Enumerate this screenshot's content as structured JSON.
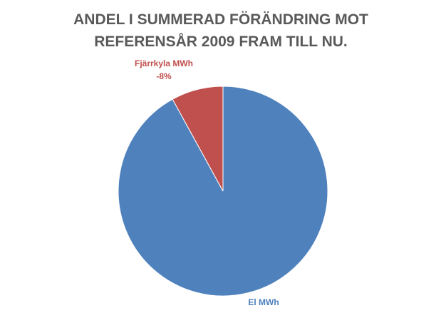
{
  "chart_data": {
    "type": "pie",
    "title": "ANDEL I SUMMERAD FÖRÄNDRING MOT REFERENSÅR 2009 FRAM TILL NU.",
    "categories": [
      "El MWh",
      "Fjärrkyla MWh"
    ],
    "values": [
      92,
      -8
    ],
    "value_labels": [
      null,
      "-8%"
    ],
    "colors": [
      "#4f81bd",
      "#c0504d"
    ]
  }
}
